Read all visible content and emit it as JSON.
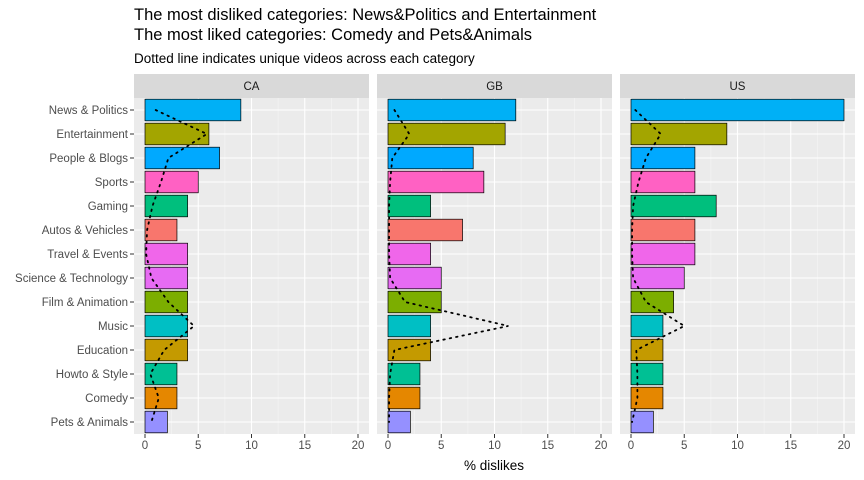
{
  "chart_data": {
    "type": "bar",
    "orientation": "horizontal",
    "title_line1": "The most disliked categories: News&Politics and Entertainment",
    "title_line2": "The most liked categories: Comedy and Pets&Animals",
    "subtitle": "Dotted line indicates unique videos across each category",
    "xlabel": "% dislikes",
    "ylabel": "",
    "xlim": [
      0,
      20
    ],
    "xticks": [
      0,
      5,
      10,
      15,
      20
    ],
    "grid": true,
    "categories": [
      "News & Politics",
      "Entertainment",
      "People & Blogs",
      "Sports",
      "Gaming",
      "Autos & Vehicles",
      "Travel & Events",
      "Science & Technology",
      "Film & Animation",
      "Music",
      "Education",
      "Howto & Style",
      "Comedy",
      "Pets & Animals"
    ],
    "colors": [
      "#00B0F6",
      "#A3A500",
      "#00A9FF",
      "#FF61C3",
      "#00BF7D",
      "#F8766D",
      "#F066EA",
      "#E76BF3",
      "#7CAE00",
      "#00BFC4",
      "#C49A00",
      "#00C094",
      "#E58700",
      "#9590FF"
    ],
    "panels": [
      {
        "label": "CA",
        "values": [
          9,
          6,
          7,
          5,
          4,
          3,
          4,
          4,
          4,
          4,
          4,
          3,
          3,
          2.1
        ],
        "dotted": [
          1,
          5.8,
          2.2,
          1.5,
          0.7,
          0.2,
          0.1,
          0.6,
          2.2,
          4.6,
          1.8,
          0.5,
          1.3,
          0.6
        ]
      },
      {
        "label": "GB",
        "values": [
          12,
          11,
          8,
          9,
          4,
          7,
          4,
          5,
          5,
          4,
          4,
          3,
          3,
          2.1
        ],
        "dotted": [
          0.6,
          2,
          0.4,
          0.2,
          0.1,
          0.1,
          0.1,
          0.2,
          1.6,
          11.3,
          0.6,
          0.2,
          0.1,
          0.1
        ]
      },
      {
        "label": "US",
        "values": [
          20,
          9,
          6,
          6,
          8,
          6,
          6,
          5,
          4,
          3,
          3,
          3,
          3,
          2.1
        ],
        "dotted": [
          0.4,
          2.8,
          1.4,
          0.7,
          0.2,
          0.1,
          0.1,
          0.2,
          1.4,
          5,
          0.5,
          0.6,
          0.6,
          0.1
        ]
      }
    ]
  }
}
